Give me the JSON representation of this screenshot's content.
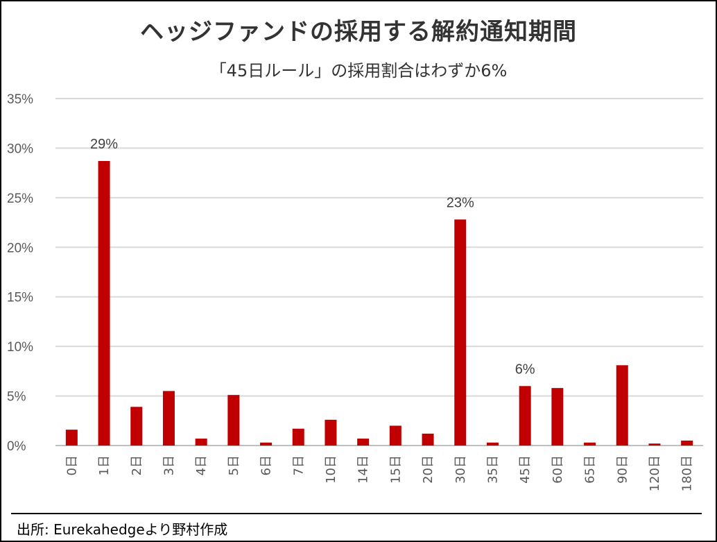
{
  "title": "ヘッジファンドの採用する解約通知期間",
  "subtitle": "「45日ルール」の採用割合はわずか6%",
  "source": "出所: Eurekahedgeより野村作成",
  "colors": {
    "bar": "#C00000",
    "grid": "#d9d9d9",
    "axis": "#bfbfbf",
    "text": "#595959"
  },
  "chart_data": {
    "type": "bar",
    "title": "ヘッジファンドの採用する解約通知期間",
    "subtitle": "「45日ルール」の採用割合はわずか6%",
    "xlabel": "",
    "ylabel": "",
    "categories": [
      "0日",
      "1日",
      "2日",
      "3日",
      "4日",
      "5日",
      "6日",
      "7日",
      "10日",
      "14日",
      "15日",
      "20日",
      "30日",
      "35日",
      "45日",
      "60日",
      "65日",
      "90日",
      "120日",
      "180日"
    ],
    "values": [
      1.6,
      28.7,
      3.9,
      5.5,
      0.7,
      5.1,
      0.3,
      1.7,
      2.6,
      0.7,
      2.0,
      1.2,
      22.8,
      0.3,
      6.0,
      5.8,
      0.3,
      8.1,
      0.2,
      0.5
    ],
    "data_labels": [
      {
        "index": 1,
        "text": "29%"
      },
      {
        "index": 12,
        "text": "23%"
      },
      {
        "index": 14,
        "text": "6%"
      }
    ],
    "ylim": [
      0,
      35
    ],
    "yticks": [
      0,
      5,
      10,
      15,
      20,
      25,
      30,
      35
    ],
    "ytick_labels": [
      "0%",
      "5%",
      "10%",
      "15%",
      "20%",
      "25%",
      "30%",
      "35%"
    ],
    "grid": true,
    "legend": "none"
  }
}
